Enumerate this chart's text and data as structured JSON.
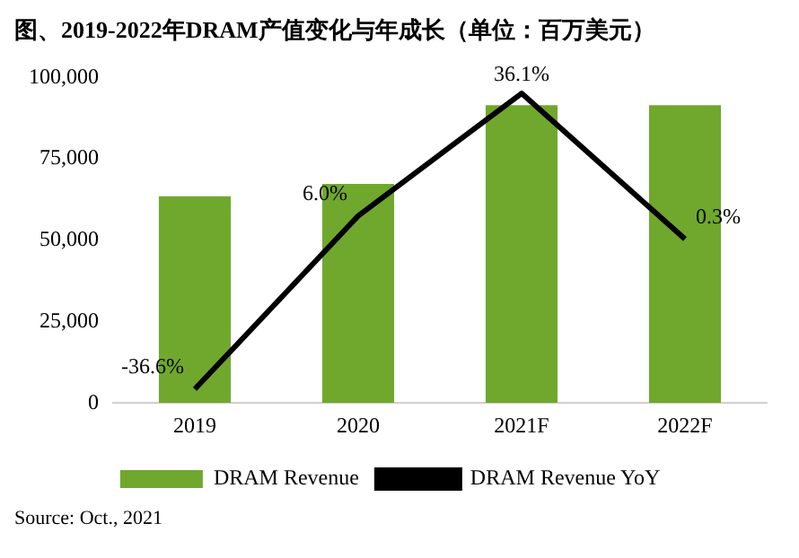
{
  "chart_data": {
    "type": "bar",
    "title": "图、2019-2022年DRAM产值变化与年成长（单位：百万美元）",
    "categories": [
      "2019",
      "2020",
      "2021F",
      "2022F"
    ],
    "series": [
      {
        "name": "DRAM Revenue",
        "color": "#70a82e",
        "values": [
          63500,
          67300,
          91500,
          91500
        ]
      },
      {
        "name": "DRAM Revenue YoY",
        "type": "line",
        "axis": "y2",
        "color": "#000000",
        "values": [
          -36.6,
          6.0,
          36.1,
          0.3
        ],
        "value_labels": [
          "-36.6%",
          "6.0%",
          "36.1%",
          "0.3%"
        ]
      }
    ],
    "ylim": [
      0,
      100000
    ],
    "yticks": [
      {
        "value": 0,
        "label": "0"
      },
      {
        "value": 25000,
        "label": "25,000"
      },
      {
        "value": 50000,
        "label": "50,000"
      },
      {
        "value": 75000,
        "label": "75,000"
      },
      {
        "value": 100000,
        "label": "100,000"
      }
    ],
    "grid": false,
    "legend": "bottom",
    "marker": "none",
    "line_style": "solid",
    "annotations": [
      "Source: Oct., 2021"
    ]
  }
}
